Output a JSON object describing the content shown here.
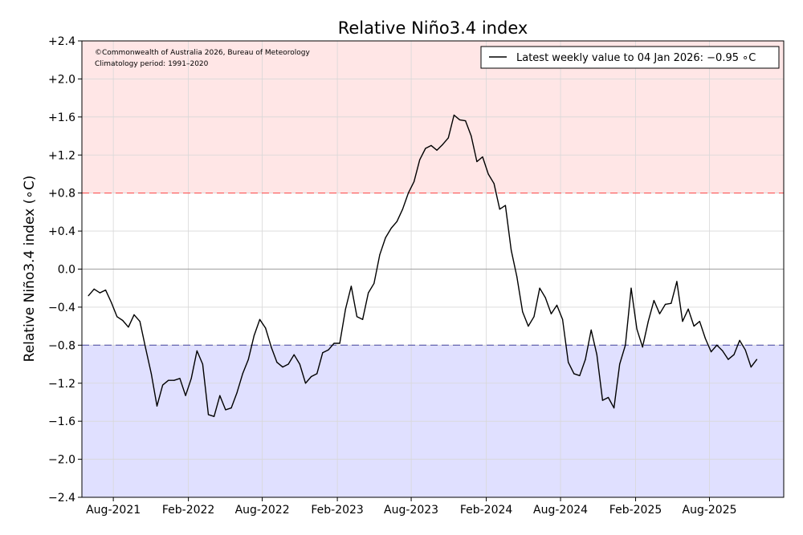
{
  "chart_data": {
    "type": "line",
    "title": "Relative Niño3.4 index",
    "ylabel": "Relative Niño3.4 index (∘C)",
    "xlabel": "",
    "ylim": [
      -2.4,
      2.4
    ],
    "y_ticks": [
      "+2.4",
      "+2.0",
      "+1.6",
      "+1.2",
      "+0.8",
      "+0.4",
      "0.0",
      "−0.4",
      "−0.8",
      "−1.2",
      "−1.6",
      "−2.0",
      "−2.4"
    ],
    "y_tick_values": [
      2.4,
      2.0,
      1.6,
      1.2,
      0.8,
      0.4,
      0.0,
      -0.4,
      -0.8,
      -1.2,
      -1.6,
      -2.0,
      -2.4
    ],
    "x_ticks": [
      "Aug-2021",
      "Feb-2022",
      "Aug-2022",
      "Feb-2023",
      "Aug-2023",
      "Feb-2024",
      "Aug-2024",
      "Feb-2025",
      "Aug-2025"
    ],
    "x_tick_dates": [
      "2021-08-01",
      "2022-02-01",
      "2022-08-01",
      "2023-02-01",
      "2023-08-01",
      "2024-02-01",
      "2024-08-01",
      "2025-02-01",
      "2025-08-01"
    ],
    "x_range": [
      "2021-05-16",
      "2026-01-30"
    ],
    "grid": true,
    "thresholds": [
      {
        "value": 0.8,
        "color": "#ff5555",
        "style": "dashed",
        "shade": "#ffe6e6",
        "shade_to": 2.4
      },
      {
        "value": -0.8,
        "color": "#5555aa",
        "style": "dashed",
        "shade": "#e0e0ff",
        "shade_to": -2.4
      }
    ],
    "legend": {
      "placement": "top-right",
      "entries": [
        "Latest weekly value to 04 Jan 2026: −0.95 ∘C"
      ]
    },
    "annotations": [
      "©Commonwealth of Australia 2026, Bureau of Meteorology",
      "Climatology period: 1991–2020"
    ],
    "series": [
      {
        "color": "#000000",
        "points": [
          [
            "2021-06-01",
            -0.28
          ],
          [
            "2021-06-15",
            -0.21
          ],
          [
            "2021-06-29",
            -0.25
          ],
          [
            "2021-07-13",
            -0.22
          ],
          [
            "2021-07-27",
            -0.35
          ],
          [
            "2021-08-10",
            -0.5
          ],
          [
            "2021-08-24",
            -0.54
          ],
          [
            "2021-09-07",
            -0.61
          ],
          [
            "2021-09-21",
            -0.48
          ],
          [
            "2021-10-05",
            -0.55
          ],
          [
            "2021-10-19",
            -0.83
          ],
          [
            "2021-11-02",
            -1.1
          ],
          [
            "2021-11-16",
            -1.44
          ],
          [
            "2021-11-30",
            -1.22
          ],
          [
            "2021-12-14",
            -1.17
          ],
          [
            "2021-12-28",
            -1.17
          ],
          [
            "2022-01-11",
            -1.15
          ],
          [
            "2022-01-25",
            -1.33
          ],
          [
            "2022-02-08",
            -1.15
          ],
          [
            "2022-02-22",
            -0.86
          ],
          [
            "2022-03-08",
            -1.0
          ],
          [
            "2022-03-22",
            -1.53
          ],
          [
            "2022-04-05",
            -1.55
          ],
          [
            "2022-04-19",
            -1.33
          ],
          [
            "2022-05-03",
            -1.48
          ],
          [
            "2022-05-17",
            -1.46
          ],
          [
            "2022-05-31",
            -1.3
          ],
          [
            "2022-06-14",
            -1.1
          ],
          [
            "2022-06-28",
            -0.95
          ],
          [
            "2022-07-12",
            -0.7
          ],
          [
            "2022-07-26",
            -0.53
          ],
          [
            "2022-08-09",
            -0.62
          ],
          [
            "2022-08-23",
            -0.82
          ],
          [
            "2022-09-06",
            -0.98
          ],
          [
            "2022-09-20",
            -1.03
          ],
          [
            "2022-10-04",
            -1.0
          ],
          [
            "2022-10-18",
            -0.9
          ],
          [
            "2022-11-01",
            -1.0
          ],
          [
            "2022-11-15",
            -1.2
          ],
          [
            "2022-11-29",
            -1.13
          ],
          [
            "2022-12-13",
            -1.1
          ],
          [
            "2022-12-27",
            -0.88
          ],
          [
            "2023-01-10",
            -0.85
          ],
          [
            "2023-01-24",
            -0.78
          ],
          [
            "2023-02-07",
            -0.78
          ],
          [
            "2023-02-21",
            -0.42
          ],
          [
            "2023-03-07",
            -0.18
          ],
          [
            "2023-03-21",
            -0.5
          ],
          [
            "2023-04-04",
            -0.53
          ],
          [
            "2023-04-18",
            -0.25
          ],
          [
            "2023-05-02",
            -0.15
          ],
          [
            "2023-05-16",
            0.15
          ],
          [
            "2023-05-30",
            0.33
          ],
          [
            "2023-06-13",
            0.43
          ],
          [
            "2023-06-27",
            0.5
          ],
          [
            "2023-07-11",
            0.63
          ],
          [
            "2023-07-25",
            0.8
          ],
          [
            "2023-08-08",
            0.92
          ],
          [
            "2023-08-22",
            1.15
          ],
          [
            "2023-09-05",
            1.27
          ],
          [
            "2023-09-19",
            1.3
          ],
          [
            "2023-10-03",
            1.25
          ],
          [
            "2023-10-17",
            1.31
          ],
          [
            "2023-10-31",
            1.38
          ],
          [
            "2023-11-14",
            1.62
          ],
          [
            "2023-11-28",
            1.57
          ],
          [
            "2023-12-12",
            1.56
          ],
          [
            "2023-12-26",
            1.4
          ],
          [
            "2024-01-09",
            1.13
          ],
          [
            "2024-01-23",
            1.18
          ],
          [
            "2024-02-06",
            1.0
          ],
          [
            "2024-02-20",
            0.9
          ],
          [
            "2024-03-05",
            0.63
          ],
          [
            "2024-03-19",
            0.67
          ],
          [
            "2024-04-02",
            0.2
          ],
          [
            "2024-04-16",
            -0.08
          ],
          [
            "2024-04-30",
            -0.45
          ],
          [
            "2024-05-14",
            -0.6
          ],
          [
            "2024-05-28",
            -0.5
          ],
          [
            "2024-06-11",
            -0.2
          ],
          [
            "2024-06-25",
            -0.3
          ],
          [
            "2024-07-09",
            -0.47
          ],
          [
            "2024-07-23",
            -0.38
          ],
          [
            "2024-08-06",
            -0.53
          ],
          [
            "2024-08-20",
            -0.98
          ],
          [
            "2024-09-03",
            -1.1
          ],
          [
            "2024-09-17",
            -1.12
          ],
          [
            "2024-10-01",
            -0.95
          ],
          [
            "2024-10-15",
            -0.64
          ],
          [
            "2024-10-29",
            -0.9
          ],
          [
            "2024-11-12",
            -1.38
          ],
          [
            "2024-11-26",
            -1.35
          ],
          [
            "2024-12-10",
            -1.46
          ],
          [
            "2024-12-24",
            -1.0
          ],
          [
            "2025-01-07",
            -0.8
          ],
          [
            "2025-01-21",
            -0.2
          ],
          [
            "2025-02-04",
            -0.63
          ],
          [
            "2025-02-18",
            -0.82
          ],
          [
            "2025-03-04",
            -0.55
          ],
          [
            "2025-03-18",
            -0.33
          ],
          [
            "2025-04-01",
            -0.47
          ],
          [
            "2025-04-15",
            -0.37
          ],
          [
            "2025-04-29",
            -0.36
          ],
          [
            "2025-05-13",
            -0.13
          ],
          [
            "2025-05-27",
            -0.55
          ],
          [
            "2025-06-10",
            -0.42
          ],
          [
            "2025-06-24",
            -0.6
          ],
          [
            "2025-07-08",
            -0.55
          ],
          [
            "2025-07-22",
            -0.73
          ],
          [
            "2025-08-05",
            -0.87
          ],
          [
            "2025-08-19",
            -0.8
          ],
          [
            "2025-09-02",
            -0.86
          ],
          [
            "2025-09-16",
            -0.95
          ],
          [
            "2025-09-30",
            -0.9
          ],
          [
            "2025-10-14",
            -0.75
          ],
          [
            "2025-10-28",
            -0.85
          ],
          [
            "2025-11-11",
            -1.03
          ],
          [
            "2025-11-25",
            -0.95
          ]
        ]
      }
    ]
  }
}
